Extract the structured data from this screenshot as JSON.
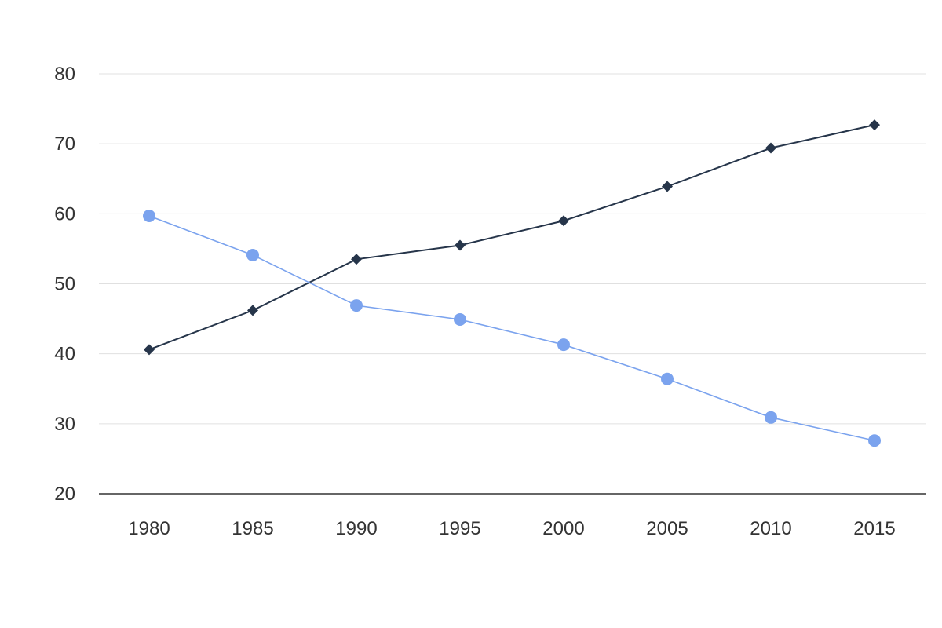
{
  "chart_data": {
    "type": "line",
    "title": "",
    "xlabel": "",
    "ylabel": "",
    "x": [
      "1980",
      "1985",
      "1990",
      "1995",
      "2000",
      "2005",
      "2010",
      "2015"
    ],
    "ylim": [
      20,
      80
    ],
    "yticks": [
      20,
      30,
      40,
      50,
      60,
      70,
      80
    ],
    "grid": true,
    "legend": "none",
    "series": [
      {
        "marker": "diamond",
        "color": "#26354a",
        "values": [
          40.6,
          46.2,
          53.5,
          55.5,
          59.0,
          63.9,
          69.4,
          72.7
        ]
      },
      {
        "marker": "circle",
        "color": "#7ba3ee",
        "values": [
          59.7,
          54.1,
          46.9,
          44.9,
          41.3,
          36.4,
          30.9,
          27.6
        ]
      }
    ]
  }
}
